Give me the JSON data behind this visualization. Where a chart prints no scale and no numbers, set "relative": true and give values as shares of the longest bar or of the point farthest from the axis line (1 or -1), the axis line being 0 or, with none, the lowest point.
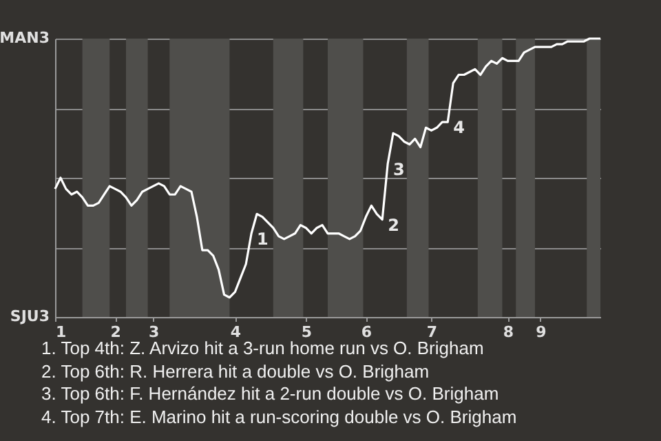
{
  "chart_data": {
    "type": "line",
    "relative": true,
    "categories": [
      "1",
      null,
      null,
      null,
      null,
      null,
      null,
      null,
      null,
      null,
      null,
      "2",
      null,
      null,
      null,
      null,
      null,
      null,
      "3",
      null,
      null,
      null,
      null,
      null,
      null,
      null,
      null,
      null,
      null,
      null,
      null,
      null,
      null,
      "4",
      null,
      null,
      null,
      null,
      null,
      null,
      null,
      null,
      null,
      null,
      null,
      null,
      "5",
      null,
      null,
      null,
      null,
      null,
      null,
      null,
      null,
      null,
      null,
      "6",
      null,
      null,
      null,
      null,
      null,
      null,
      null,
      null,
      null,
      null,
      null,
      "7",
      null,
      null,
      null,
      null,
      null,
      null,
      null,
      null,
      null,
      null,
      null,
      null,
      null,
      "8",
      null,
      null,
      null,
      null,
      null,
      "9",
      null,
      null,
      null,
      null,
      null,
      null,
      null,
      null,
      null,
      null,
      null
    ],
    "values": [
      0.46,
      0.5,
      0.46,
      0.44,
      0.45,
      0.43,
      0.4,
      0.4,
      0.41,
      0.44,
      0.47,
      0.46,
      0.45,
      0.43,
      0.4,
      0.42,
      0.45,
      0.46,
      0.47,
      0.48,
      0.47,
      0.44,
      0.44,
      0.47,
      0.46,
      0.45,
      0.36,
      0.24,
      0.24,
      0.22,
      0.17,
      0.08,
      0.07,
      0.09,
      0.14,
      0.19,
      0.3,
      0.37,
      0.36,
      0.34,
      0.32,
      0.29,
      0.28,
      0.29,
      0.3,
      0.33,
      0.32,
      0.3,
      0.32,
      0.33,
      0.3,
      0.3,
      0.3,
      0.29,
      0.28,
      0.29,
      0.31,
      0.36,
      0.4,
      0.37,
      0.35,
      0.55,
      0.66,
      0.65,
      0.63,
      0.62,
      0.64,
      0.61,
      0.68,
      0.67,
      0.68,
      0.7,
      0.7,
      0.84,
      0.87,
      0.87,
      0.88,
      0.89,
      0.87,
      0.9,
      0.92,
      0.91,
      0.93,
      0.92,
      0.92,
      0.92,
      0.95,
      0.96,
      0.97,
      0.97,
      0.97,
      0.97,
      0.98,
      0.98,
      0.99,
      0.99,
      0.99,
      0.99,
      1.0,
      1.0,
      1.0
    ],
    "color": "#ffffff",
    "grid": "y",
    "annotations": [
      "1",
      "2",
      "3",
      "4",
      "MAN3",
      "SJU3",
      "1. Top 4th: Z. Arvizo hit a 3-run home run vs O. Brigham",
      "2. Top 6th: R. Herrera hit a double vs O. Brigham",
      "3. Top 6th: F. Hernández hit a 2-run double vs O. Brigham",
      "4. Top 7th: E. Marino hit a run-scoring double vs O. Brigham"
    ]
  }
}
